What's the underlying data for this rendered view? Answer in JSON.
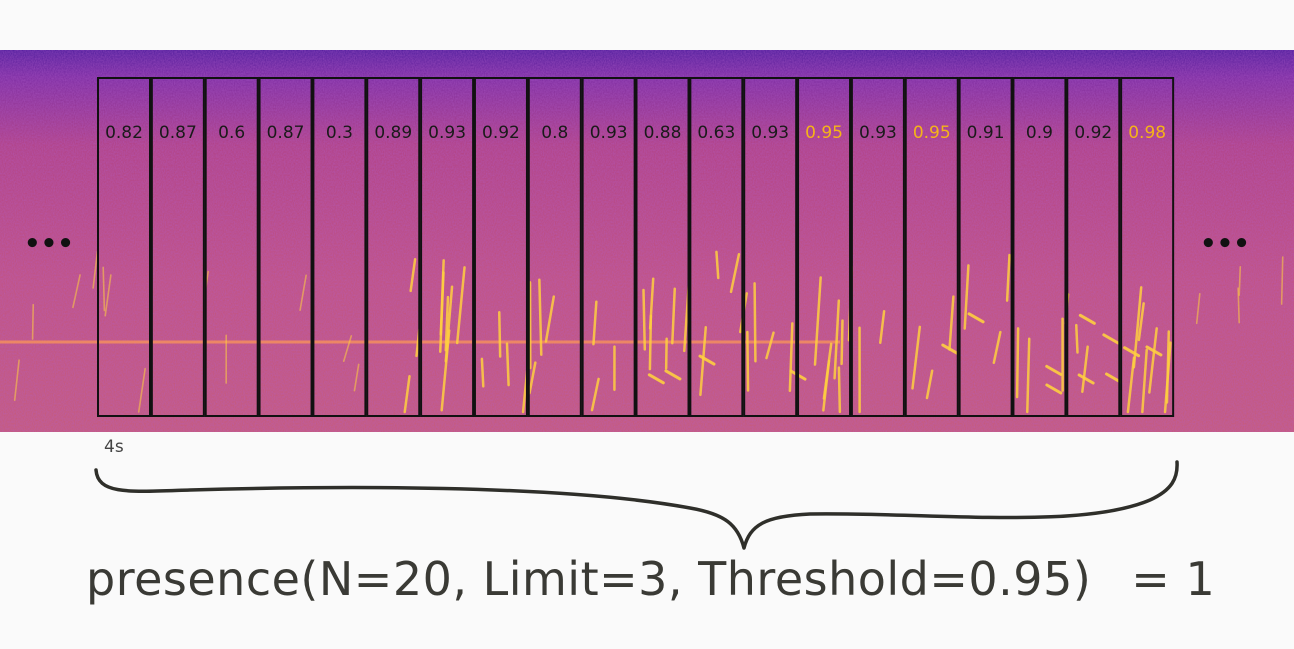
{
  "windows": [
    {
      "score": "0.82",
      "above": false
    },
    {
      "score": "0.87",
      "above": false
    },
    {
      "score": "0.6",
      "above": false
    },
    {
      "score": "0.87",
      "above": false
    },
    {
      "score": "0.3",
      "above": false
    },
    {
      "score": "0.89",
      "above": false
    },
    {
      "score": "0.93",
      "above": false
    },
    {
      "score": "0.92",
      "above": false
    },
    {
      "score": "0.8",
      "above": false
    },
    {
      "score": "0.93",
      "above": false
    },
    {
      "score": "0.88",
      "above": false
    },
    {
      "score": "0.63",
      "above": false
    },
    {
      "score": "0.93",
      "above": false
    },
    {
      "score": "0.95",
      "above": true
    },
    {
      "score": "0.93",
      "above": false
    },
    {
      "score": "0.95",
      "above": true
    },
    {
      "score": "0.91",
      "above": false
    },
    {
      "score": "0.9",
      "above": false
    },
    {
      "score": "0.92",
      "above": false
    },
    {
      "score": "0.98",
      "above": true
    }
  ],
  "window_label": "4s",
  "ellipsis_left": "•••",
  "ellipsis_right": "•••",
  "formula": {
    "expression": "presence(N=20, Limit=3, Threshold=0.95)",
    "result": "= 1"
  },
  "colors": {
    "score_normal": "#1a1a1a",
    "score_highlight": "#f5b417",
    "box_stroke": "#111111",
    "spectrogram_bg": "#c04a7a",
    "spectrogram_top": "#5a23a0",
    "call_mark": "#ffcf40"
  }
}
